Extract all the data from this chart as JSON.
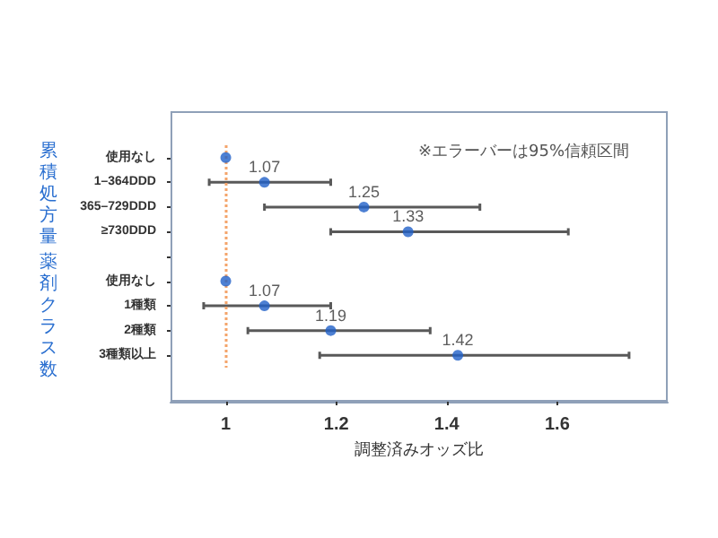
{
  "chart_data": {
    "type": "scatter",
    "orientation": "horizontal",
    "xlabel": "調整済みオッズ比",
    "categories": [
      "使用なし",
      "1–364DDD",
      "365–729DDD",
      "≥730DDD",
      null,
      "使用なし",
      "1種類",
      "2種類",
      "3種類以上"
    ],
    "values": [
      1,
      1.07,
      1.25,
      1.33,
      null,
      1,
      1.07,
      1.19,
      1.42
    ],
    "errors": [
      null,
      [
        0.97,
        1.19
      ],
      [
        1.07,
        1.46
      ],
      [
        1.19,
        1.62
      ],
      null,
      null,
      [
        0.96,
        1.19
      ],
      [
        1.04,
        1.37
      ],
      [
        1.17,
        1.73
      ]
    ],
    "value_labels": [
      null,
      "1.07",
      "1.25",
      "1.33",
      null,
      null,
      "1.07",
      "1.19",
      "1.42"
    ],
    "color": "#2060c8",
    "xlim": [
      0.9,
      1.8
    ],
    "xticks": [
      1,
      1.2,
      1.4,
      1.6
    ],
    "grid": false,
    "marker": "circle",
    "ref_lines": [
      {
        "axis": "x",
        "value": 1,
        "color": "#f4a46a",
        "line_style": "dotted"
      }
    ],
    "annotations": [
      "※エラーバーは95%信頼区間",
      "累積処方量",
      "薬剤クラス数"
    ]
  }
}
